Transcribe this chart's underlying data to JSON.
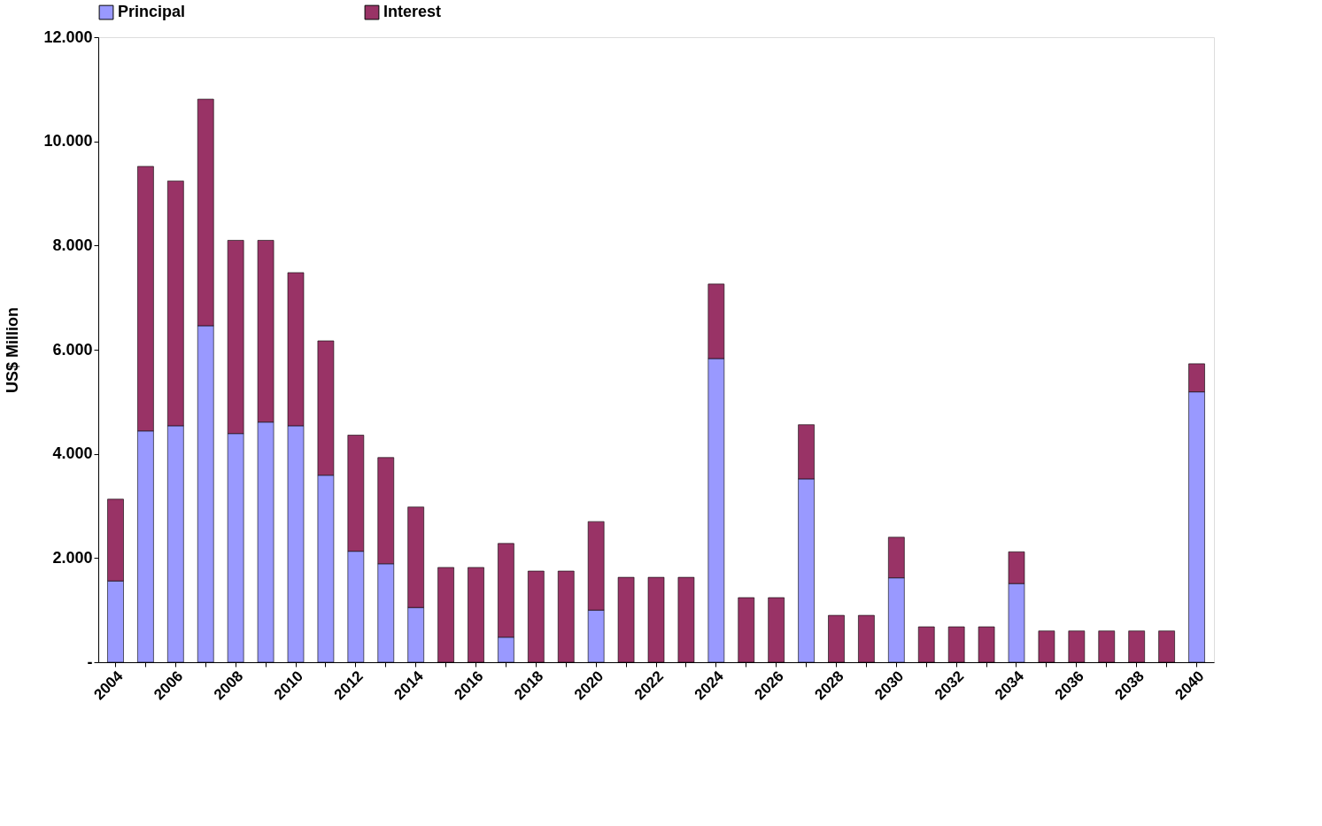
{
  "chart_data": {
    "type": "bar",
    "stacked": true,
    "ylabel": "US$ Million",
    "categories": [
      "2004",
      null,
      "2006",
      null,
      "2008",
      null,
      "2010",
      null,
      "2012",
      null,
      "2014",
      null,
      "2016",
      null,
      "2018",
      null,
      "2020",
      null,
      "2022",
      null,
      "2024",
      null,
      "2026",
      null,
      "2028",
      null,
      "2030",
      null,
      "2032",
      null,
      "2034",
      null,
      "2036",
      null,
      "2038",
      null,
      "2040"
    ],
    "series": [
      {
        "name": "Principal",
        "color": "#9999ff",
        "values": [
          1560,
          4440,
          4540,
          6460,
          4390,
          4610,
          4540,
          3590,
          2130,
          1890,
          1050,
          0,
          0,
          480,
          0,
          0,
          1000,
          0,
          0,
          0,
          5830,
          0,
          0,
          3520,
          0,
          0,
          1620,
          0,
          0,
          0,
          1510,
          0,
          0,
          0,
          0,
          0,
          5190
        ]
      },
      {
        "name": "Interest",
        "color": "#993366",
        "values": [
          1570,
          5080,
          4700,
          4350,
          3710,
          3490,
          2940,
          2580,
          2230,
          2040,
          1930,
          1820,
          1820,
          1800,
          1750,
          1750,
          1700,
          1630,
          1630,
          1630,
          1430,
          1240,
          1240,
          1040,
          900,
          900,
          780,
          680,
          680,
          680,
          610,
          600,
          600,
          600,
          600,
          600,
          540
        ]
      }
    ],
    "ylim": [
      0,
      12000
    ],
    "yticks": [
      {
        "value": 0,
        "label": "-"
      },
      {
        "value": 2000,
        "label": "2.000"
      },
      {
        "value": 4000,
        "label": "4.000"
      },
      {
        "value": 6000,
        "label": "6.000"
      },
      {
        "value": 8000,
        "label": "8.000"
      },
      {
        "value": 10000,
        "label": "10.000"
      },
      {
        "value": 12000,
        "label": "12.000"
      }
    ],
    "legend": "top",
    "grid": false
  }
}
